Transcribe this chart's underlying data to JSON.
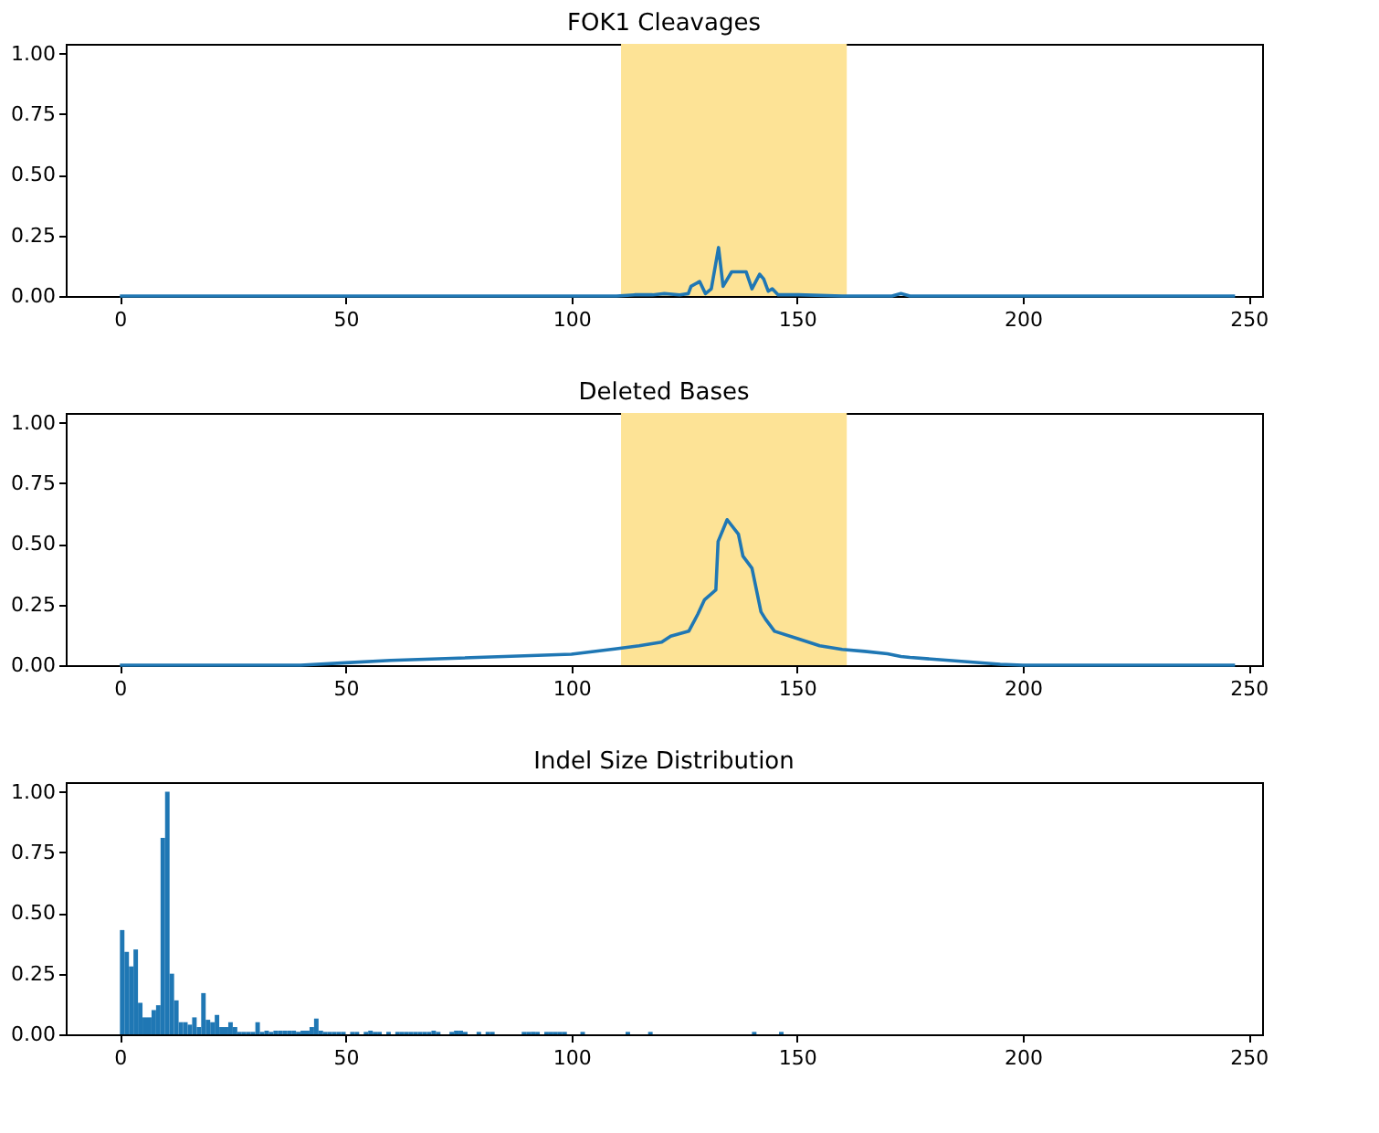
{
  "chart_data": [
    {
      "type": "line",
      "title": "FOK1 Cleavages",
      "x": [
        0,
        50,
        100,
        110,
        114,
        118,
        120.6,
        124,
        125.9,
        126.5,
        128.4,
        129.7,
        131,
        132.6,
        133.6,
        135.5,
        138.7,
        140,
        141.7,
        142.6,
        143.6,
        144.5,
        145.8,
        150.3,
        160,
        171,
        173,
        175,
        200,
        247
      ],
      "series": [
        {
          "color": "#1f77b4",
          "values": [
            0,
            0,
            0,
            0,
            0.005,
            0.005,
            0.01,
            0.005,
            0.01,
            0.04,
            0.06,
            0.01,
            0.03,
            0.2,
            0.04,
            0.1,
            0.1,
            0.03,
            0.09,
            0.07,
            0.02,
            0.03,
            0.005,
            0.005,
            0,
            0,
            0.01,
            0,
            0,
            0
          ]
        }
      ],
      "bands": [
        {
          "axis": "x",
          "from": 111,
          "to": 161,
          "color": "#fde396"
        }
      ],
      "xlim": [
        -12,
        253
      ],
      "ylim": [
        0,
        1.04
      ],
      "xticks": [
        0,
        50,
        100,
        150,
        200,
        250
      ],
      "yticks": [
        {
          "value": 0,
          "label": "0.00"
        },
        {
          "value": 0.25,
          "label": "0.25"
        },
        {
          "value": 0.5,
          "label": "0.50"
        },
        {
          "value": 0.75,
          "label": "0.75"
        },
        {
          "value": 1,
          "label": "1.00"
        }
      ],
      "grid": false,
      "legend": false,
      "marker": "none",
      "line_style": "solid"
    },
    {
      "type": "line",
      "title": "Deleted Bases",
      "x": [
        0,
        40,
        50,
        60,
        100,
        110,
        115,
        120,
        122,
        126,
        128,
        129.5,
        132,
        132.5,
        134.5,
        137,
        138,
        140,
        142,
        143,
        145,
        150,
        155,
        160,
        165,
        170,
        173,
        175,
        185,
        195,
        200,
        247
      ],
      "series": [
        {
          "color": "#1f77b4",
          "values": [
            0,
            0,
            0.01,
            0.02,
            0.045,
            0.068,
            0.08,
            0.095,
            0.12,
            0.14,
            0.21,
            0.27,
            0.31,
            0.51,
            0.6,
            0.54,
            0.45,
            0.4,
            0.22,
            0.19,
            0.14,
            0.11,
            0.08,
            0.065,
            0.057,
            0.047,
            0.036,
            0.032,
            0.018,
            0.004,
            0,
            0
          ]
        }
      ],
      "bands": [
        {
          "axis": "x",
          "from": 111,
          "to": 161,
          "color": "#fde396"
        }
      ],
      "xlim": [
        -12,
        253
      ],
      "ylim": [
        0,
        1.04
      ],
      "xticks": [
        0,
        50,
        100,
        150,
        200,
        250
      ],
      "yticks": [
        {
          "value": 0,
          "label": "0.00"
        },
        {
          "value": 0.25,
          "label": "0.25"
        },
        {
          "value": 0.5,
          "label": "0.50"
        },
        {
          "value": 0.75,
          "label": "0.75"
        },
        {
          "value": 1,
          "label": "1.00"
        }
      ],
      "grid": false,
      "legend": false,
      "marker": "none",
      "line_style": "solid"
    },
    {
      "type": "bar",
      "title": "Indel Size Distribution",
      "color": "#1f77b4",
      "x": [
        0.5,
        1.5,
        2.5,
        3.5,
        4.5,
        5.5,
        6.5,
        7.5,
        8.5,
        9.5,
        10.5,
        11.5,
        12.5,
        13.5,
        14.5,
        15.5,
        16.5,
        17.5,
        18.5,
        19.5,
        20.5,
        21.5,
        22.5,
        23.5,
        24.5,
        25.5,
        26.5,
        27.5,
        28.5,
        29.5,
        30.5,
        31.5,
        32.5,
        33.5,
        34.5,
        35.5,
        36.5,
        37.5,
        38.5,
        39.5,
        40.5,
        41.5,
        42.5,
        43.5,
        44.5,
        45.5,
        46.5,
        47.5,
        48.5,
        49.5,
        51.5,
        52.5,
        54.5,
        55.5,
        56.5,
        57.5,
        59.5,
        61.5,
        62.5,
        63.5,
        64.5,
        65.5,
        66.5,
        67.5,
        68.5,
        69.5,
        70.5,
        73.5,
        74.5,
        75.5,
        76.5,
        79.5,
        81.5,
        82.5,
        89.5,
        90.5,
        91.5,
        92.5,
        94.5,
        95.5,
        96.5,
        97.5,
        98.5,
        102.5,
        112.5,
        117.5,
        140.5,
        146.5
      ],
      "values": [
        0.43,
        0.34,
        0.28,
        0.35,
        0.13,
        0.07,
        0.07,
        0.1,
        0.12,
        0.81,
        1.0,
        0.25,
        0.14,
        0.05,
        0.05,
        0.04,
        0.07,
        0.03,
        0.17,
        0.06,
        0.05,
        0.08,
        0.03,
        0.03,
        0.05,
        0.03,
        0.01,
        0.01,
        0.01,
        0.01,
        0.05,
        0.01,
        0.015,
        0.01,
        0.015,
        0.015,
        0.015,
        0.015,
        0.015,
        0.01,
        0.015,
        0.015,
        0.03,
        0.065,
        0.015,
        0.01,
        0.01,
        0.01,
        0.01,
        0.01,
        0.01,
        0.01,
        0.01,
        0.015,
        0.01,
        0.01,
        0.01,
        0.01,
        0.01,
        0.01,
        0.01,
        0.01,
        0.01,
        0.01,
        0.01,
        0.015,
        0.01,
        0.01,
        0.015,
        0.015,
        0.01,
        0.01,
        0.01,
        0.01,
        0.01,
        0.01,
        0.01,
        0.01,
        0.01,
        0.01,
        0.01,
        0.01,
        0.01,
        0.01,
        0.01,
        0.01,
        0.01,
        0.01
      ],
      "xlim": [
        -12,
        253
      ],
      "ylim": [
        0,
        1.04
      ],
      "xticks": [
        0,
        50,
        100,
        150,
        200,
        250
      ],
      "yticks": [
        {
          "value": 0,
          "label": "0.00"
        },
        {
          "value": 0.25,
          "label": "0.25"
        },
        {
          "value": 0.5,
          "label": "0.50"
        },
        {
          "value": 0.75,
          "label": "0.75"
        },
        {
          "value": 1,
          "label": "1.00"
        }
      ],
      "grid": false,
      "legend": false
    }
  ]
}
